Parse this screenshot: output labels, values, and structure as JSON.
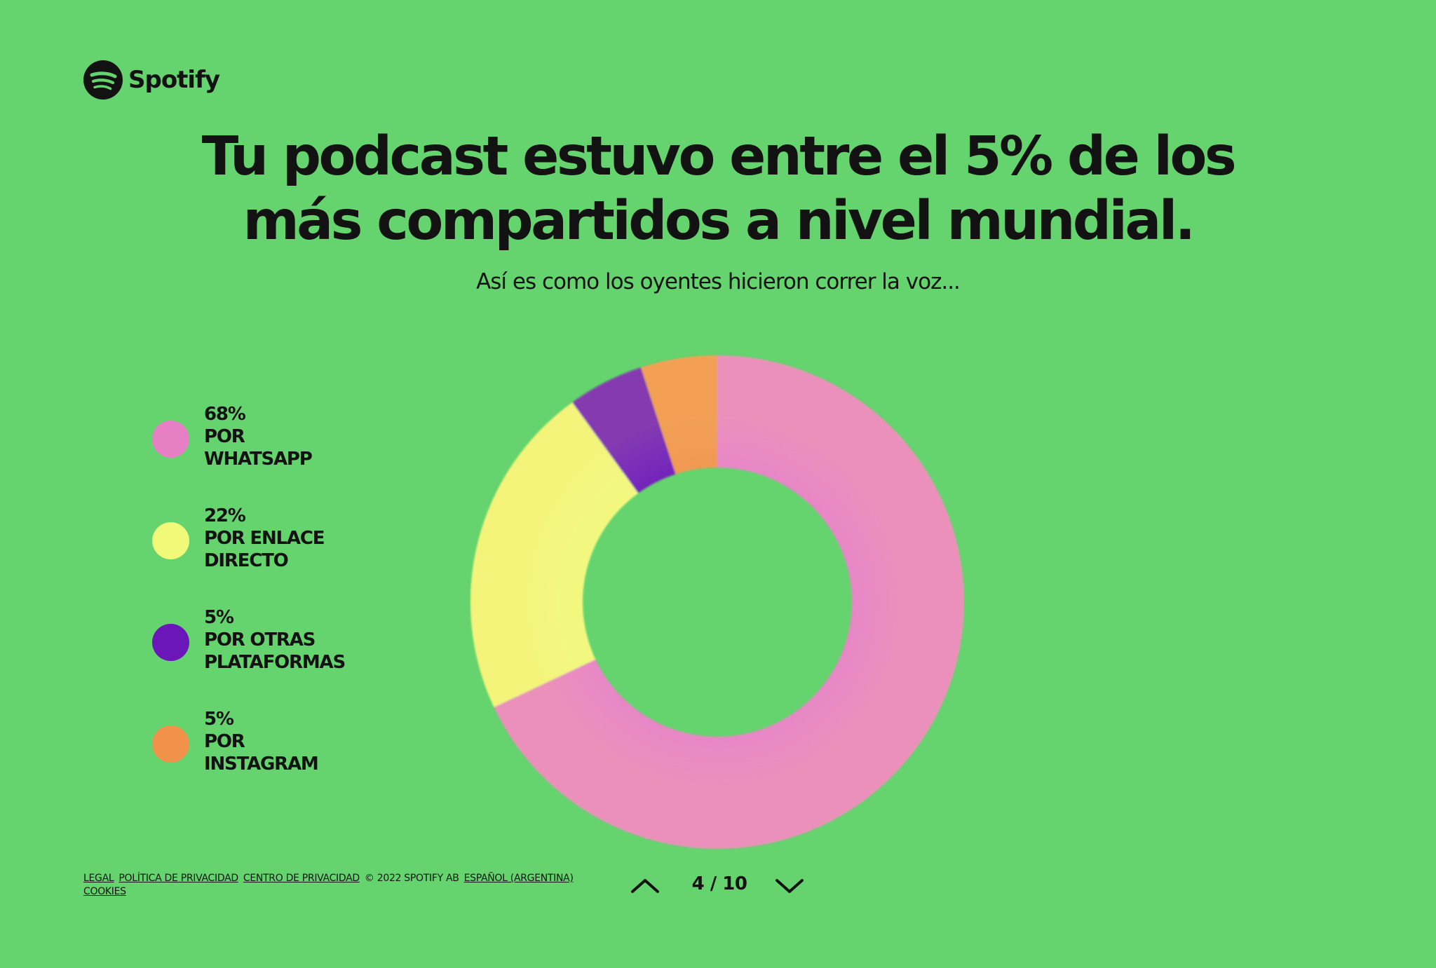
{
  "brand": {
    "name": "Spotify",
    "icon": "spotify-logo-icon"
  },
  "heading": {
    "line1": "Tu podcast estuvo entre el 5% de los",
    "line2": "más compartidos a nivel mundial.",
    "subtitle": "Así es como los oyentes hicieron correr la voz..."
  },
  "chart_data": {
    "type": "pie",
    "variant": "donut",
    "title": "",
    "categories": [
      "POR WHATSAPP",
      "POR ENLACE DIRECTO",
      "POR OTRAS PLATAFORMAS",
      "POR INSTAGRAM"
    ],
    "values": [
      68,
      22,
      5,
      5
    ],
    "unit": "%",
    "colors": [
      "#e67fc4",
      "#f1f978",
      "#6a16b8",
      "#f0924a"
    ],
    "legend": [
      {
        "percent": "68%",
        "line1": "POR",
        "line2": "WHATSAPP",
        "color": "#e67fc4"
      },
      {
        "percent": "22%",
        "line1": "POR ENLACE",
        "line2": "DIRECTO",
        "color": "#f1f978"
      },
      {
        "percent": "5%",
        "line1": "POR OTRAS",
        "line2": "PLATAFORMAS",
        "color": "#6a16b8"
      },
      {
        "percent": "5%",
        "line1": "POR",
        "line2": "INSTAGRAM",
        "color": "#f0924a"
      }
    ],
    "legend_position": "left"
  },
  "footer": {
    "links": [
      "LEGAL",
      "POLÍTICA DE PRIVACIDAD",
      "CENTRO DE PRIVACIDAD"
    ],
    "copyright": "© 2022 SPOTIFY AB",
    "language": "ESPAÑOL (ARGENTINA)",
    "cookies": "COOKIES"
  },
  "pager": {
    "current": "4",
    "separator": "/",
    "total": "10",
    "label": "4 / 10",
    "prev_icon": "chevron-up-icon",
    "next_icon": "chevron-down-icon"
  },
  "colors": {
    "background": "#65d46e",
    "text": "#121212"
  }
}
